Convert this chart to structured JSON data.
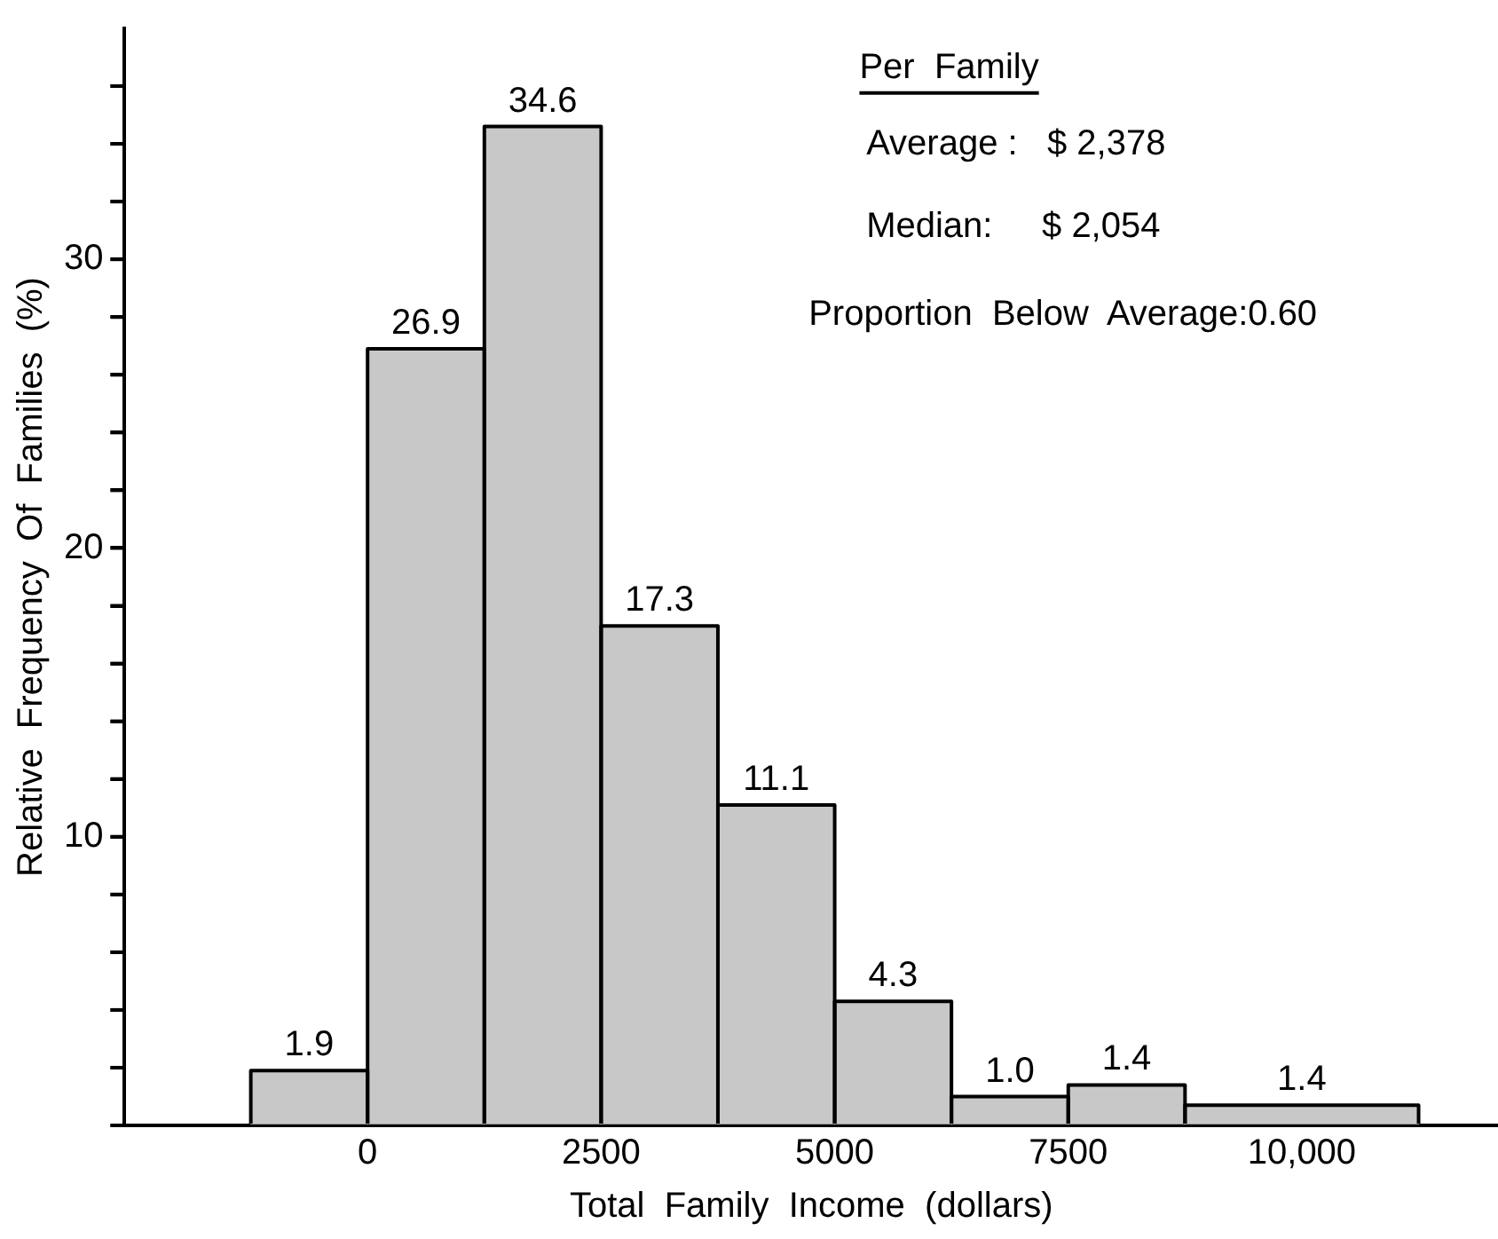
{
  "chart_data": {
    "type": "histogram",
    "xlabel": "Total  Family  Income  (dollars)",
    "ylabel": "Relative  Frequency  Of  Families  (%)",
    "bins": [
      -1250,
      0,
      1250,
      2500,
      3750,
      5000,
      6250,
      7500,
      8750,
      11250
    ],
    "values": [
      1.9,
      26.9,
      34.6,
      17.3,
      11.1,
      4.3,
      1.0,
      1.4,
      0.7
    ],
    "value_labels": [
      "1.9",
      "26.9",
      "34.6",
      "17.3",
      "11.1",
      "4.3",
      "1.0",
      "1.4",
      null
    ],
    "color": "#c8c8c8",
    "xlim": [
      -2600,
      12100
    ],
    "xticks": [
      0,
      2500,
      5000,
      7500,
      {
        "value": 10000,
        "label": "10,000"
      }
    ],
    "ylim": [
      0,
      38
    ],
    "yticks": [
      {
        "value": 0,
        "label": null
      },
      {
        "value": 2,
        "label": null
      },
      {
        "value": 4,
        "label": null
      },
      {
        "value": 6,
        "label": null
      },
      {
        "value": 8,
        "label": null
      },
      10,
      {
        "value": 12,
        "label": null
      },
      {
        "value": 14,
        "label": null
      },
      {
        "value": 16,
        "label": null
      },
      {
        "value": 18,
        "label": null
      },
      20,
      {
        "value": 22,
        "label": null
      },
      {
        "value": 24,
        "label": null
      },
      {
        "value": 26,
        "label": null
      },
      {
        "value": 28,
        "label": null
      },
      30,
      {
        "value": 32,
        "label": null
      },
      {
        "value": 34,
        "label": null
      },
      {
        "value": 36,
        "label": null
      }
    ],
    "annotations": [
      {
        "text": "1.4",
        "x": 10000,
        "y": 0.7
      },
      "Per  Family",
      "Average :   $ 2,378",
      "Median:     $ 2,054",
      "Proportion  Below  Average:0.60"
    ],
    "grid": false,
    "legend": false
  }
}
